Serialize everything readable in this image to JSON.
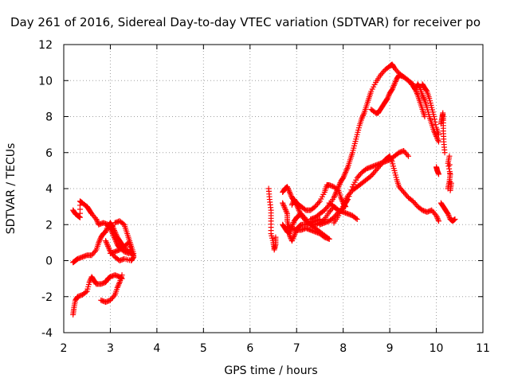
{
  "chart_data": {
    "type": "scatter",
    "title": "Day 261 of 2016, Sidereal Day-to-day VTEC variation (SDTVAR) for receiver po",
    "xlabel": "GPS time / hours",
    "ylabel": "SDTVAR / TECUs",
    "xlim": [
      2,
      11
    ],
    "ylim": [
      -4,
      12
    ],
    "xticks": [
      2,
      3,
      4,
      5,
      6,
      7,
      8,
      9,
      10,
      11
    ],
    "yticks": [
      -4,
      -2,
      0,
      2,
      4,
      6,
      8,
      10,
      12
    ],
    "grid": true,
    "marker": "plus",
    "color": "#ff0000",
    "tracks": [
      [
        [
          2.2,
          2.8
        ],
        [
          2.25,
          2.6
        ],
        [
          2.3,
          2.5
        ],
        [
          2.35,
          2.4
        ],
        [
          2.35,
          3.3
        ],
        [
          2.4,
          3.2
        ],
        [
          2.5,
          3.0
        ],
        [
          2.55,
          2.8
        ],
        [
          2.6,
          2.6
        ],
        [
          2.7,
          2.3
        ],
        [
          2.75,
          2.0
        ],
        [
          2.85,
          2.1
        ],
        [
          2.95,
          2.0
        ],
        [
          3.0,
          1.8
        ],
        [
          3.05,
          1.5
        ],
        [
          3.1,
          1.2
        ],
        [
          3.15,
          0.9
        ],
        [
          3.2,
          0.7
        ],
        [
          3.3,
          0.5
        ],
        [
          3.4,
          0.4
        ]
      ],
      [
        [
          2.2,
          -0.1
        ],
        [
          2.25,
          0.0
        ],
        [
          2.3,
          0.1
        ],
        [
          2.4,
          0.2
        ],
        [
          2.5,
          0.3
        ],
        [
          2.6,
          0.3
        ],
        [
          2.7,
          0.6
        ],
        [
          2.75,
          1.0
        ],
        [
          2.8,
          1.3
        ],
        [
          2.85,
          1.5
        ],
        [
          2.9,
          1.6
        ],
        [
          2.95,
          1.9
        ],
        [
          3.0,
          2.1
        ],
        [
          3.05,
          1.9
        ],
        [
          3.1,
          1.6
        ],
        [
          3.15,
          1.3
        ],
        [
          3.2,
          1.1
        ],
        [
          3.25,
          0.9
        ],
        [
          3.3,
          0.7
        ],
        [
          3.4,
          0.5
        ],
        [
          3.5,
          0.3
        ]
      ],
      [
        [
          3.0,
          0.4
        ],
        [
          3.1,
          0.5
        ],
        [
          3.2,
          0.6
        ],
        [
          3.3,
          0.8
        ],
        [
          3.4,
          1.0
        ],
        [
          3.45,
          0.5
        ],
        [
          3.5,
          0.2
        ],
        [
          3.45,
          0.0
        ],
        [
          3.3,
          0.1
        ],
        [
          3.2,
          0.0
        ],
        [
          3.1,
          0.2
        ],
        [
          3.0,
          0.5
        ],
        [
          2.95,
          0.8
        ],
        [
          2.9,
          1.1
        ]
      ],
      [
        [
          3.1,
          2.1
        ],
        [
          3.2,
          2.2
        ],
        [
          3.3,
          2.0
        ],
        [
          3.35,
          1.6
        ],
        [
          3.4,
          1.2
        ],
        [
          3.45,
          0.8
        ],
        [
          3.5,
          0.4
        ]
      ],
      [
        [
          2.2,
          -3.0
        ],
        [
          2.22,
          -2.6
        ],
        [
          2.25,
          -2.2
        ],
        [
          2.3,
          -2.0
        ],
        [
          2.4,
          -1.9
        ],
        [
          2.5,
          -1.7
        ],
        [
          2.55,
          -1.2
        ],
        [
          2.6,
          -0.9
        ],
        [
          2.65,
          -1.1
        ],
        [
          2.7,
          -1.3
        ],
        [
          2.8,
          -1.3
        ],
        [
          2.9,
          -1.2
        ],
        [
          2.95,
          -1.0
        ],
        [
          3.0,
          -0.9
        ],
        [
          3.1,
          -0.8
        ],
        [
          3.2,
          -0.9
        ],
        [
          3.25,
          -1.0
        ]
      ],
      [
        [
          2.8,
          -2.2
        ],
        [
          2.9,
          -2.3
        ],
        [
          3.0,
          -2.2
        ],
        [
          3.1,
          -1.9
        ],
        [
          3.15,
          -1.5
        ],
        [
          3.2,
          -1.2
        ],
        [
          3.25,
          -0.8
        ]
      ],
      [
        [
          6.4,
          4.0
        ],
        [
          6.42,
          3.4
        ],
        [
          6.45,
          2.8
        ],
        [
          6.45,
          2.2
        ],
        [
          6.45,
          1.5
        ],
        [
          6.5,
          1.0
        ],
        [
          6.52,
          0.6
        ],
        [
          6.55,
          0.9
        ],
        [
          6.55,
          1.3
        ]
      ],
      [
        [
          6.7,
          3.8
        ],
        [
          6.75,
          4.0
        ],
        [
          6.8,
          4.1
        ],
        [
          6.85,
          3.8
        ],
        [
          6.9,
          3.5
        ],
        [
          6.95,
          3.3
        ],
        [
          7.0,
          3.1
        ],
        [
          7.05,
          2.8
        ],
        [
          7.1,
          2.5
        ],
        [
          7.2,
          2.2
        ],
        [
          7.3,
          2.0
        ],
        [
          7.4,
          2.0
        ],
        [
          7.5,
          2.1
        ],
        [
          7.6,
          2.3
        ],
        [
          7.7,
          2.7
        ],
        [
          7.8,
          3.0
        ],
        [
          7.85,
          2.9
        ]
      ],
      [
        [
          6.7,
          2.0
        ],
        [
          6.75,
          1.8
        ],
        [
          6.8,
          1.6
        ],
        [
          6.85,
          1.5
        ],
        [
          6.9,
          1.9
        ],
        [
          6.95,
          2.2
        ],
        [
          7.0,
          2.4
        ],
        [
          7.05,
          2.5
        ],
        [
          7.1,
          2.6
        ],
        [
          7.2,
          2.3
        ],
        [
          7.3,
          2.0
        ],
        [
          7.4,
          1.8
        ],
        [
          7.5,
          1.6
        ],
        [
          7.6,
          1.4
        ],
        [
          7.7,
          1.2
        ]
      ],
      [
        [
          6.7,
          3.2
        ],
        [
          6.75,
          2.9
        ],
        [
          6.8,
          2.6
        ],
        [
          6.8,
          2.2
        ],
        [
          6.85,
          1.8
        ],
        [
          6.85,
          1.4
        ],
        [
          6.9,
          1.1
        ],
        [
          6.95,
          1.4
        ],
        [
          7.0,
          1.7
        ],
        [
          7.05,
          1.9
        ],
        [
          7.1,
          2.0
        ],
        [
          7.2,
          2.0
        ],
        [
          7.3,
          2.1
        ],
        [
          7.4,
          2.2
        ],
        [
          7.5,
          2.3
        ]
      ],
      [
        [
          6.9,
          3.1
        ],
        [
          6.95,
          3.4
        ],
        [
          7.0,
          3.2
        ],
        [
          7.1,
          3.0
        ],
        [
          7.2,
          2.8
        ],
        [
          7.3,
          2.8
        ],
        [
          7.4,
          3.0
        ],
        [
          7.5,
          3.3
        ],
        [
          7.6,
          3.8
        ],
        [
          7.65,
          4.2
        ],
        [
          7.7,
          4.2
        ],
        [
          7.8,
          4.1
        ],
        [
          7.9,
          3.9
        ],
        [
          7.95,
          3.5
        ],
        [
          8.0,
          3.2
        ],
        [
          8.05,
          3.0
        ]
      ],
      [
        [
          7.3,
          2.3
        ],
        [
          7.4,
          2.4
        ],
        [
          7.5,
          2.6
        ],
        [
          7.6,
          2.8
        ],
        [
          7.7,
          3.1
        ],
        [
          7.8,
          3.5
        ],
        [
          7.85,
          3.8
        ],
        [
          7.9,
          4.1
        ],
        [
          7.95,
          4.4
        ],
        [
          8.0,
          4.6
        ],
        [
          8.05,
          4.9
        ],
        [
          8.1,
          5.2
        ],
        [
          8.15,
          5.6
        ],
        [
          8.2,
          6.0
        ],
        [
          8.25,
          6.5
        ],
        [
          8.3,
          7.0
        ],
        [
          8.35,
          7.5
        ],
        [
          8.4,
          7.9
        ],
        [
          8.45,
          8.2
        ],
        [
          8.5,
          8.6
        ],
        [
          8.55,
          9.0
        ],
        [
          8.6,
          9.4
        ],
        [
          8.7,
          9.9
        ],
        [
          8.8,
          10.3
        ],
        [
          8.9,
          10.6
        ],
        [
          9.0,
          10.8
        ],
        [
          9.05,
          10.9
        ],
        [
          9.1,
          10.7
        ],
        [
          9.2,
          10.4
        ],
        [
          9.3,
          10.2
        ],
        [
          9.4,
          10.0
        ],
        [
          9.5,
          9.8
        ],
        [
          9.55,
          9.5
        ],
        [
          9.6,
          9.2
        ],
        [
          9.65,
          8.8
        ],
        [
          9.7,
          8.4
        ],
        [
          9.75,
          8.0
        ]
      ],
      [
        [
          8.6,
          8.4
        ],
        [
          8.7,
          8.2
        ],
        [
          8.75,
          8.2
        ],
        [
          8.8,
          8.4
        ],
        [
          8.85,
          8.6
        ],
        [
          8.9,
          8.8
        ],
        [
          8.95,
          9.0
        ],
        [
          9.0,
          9.3
        ],
        [
          9.05,
          9.5
        ],
        [
          9.1,
          9.8
        ],
        [
          9.15,
          10.1
        ],
        [
          9.2,
          10.3
        ],
        [
          9.3,
          10.2
        ],
        [
          9.4,
          10.0
        ],
        [
          9.5,
          9.7
        ],
        [
          9.55,
          9.5
        ],
        [
          9.6,
          9.8
        ],
        [
          9.65,
          9.6
        ],
        [
          9.7,
          9.2
        ],
        [
          9.75,
          8.9
        ],
        [
          9.8,
          8.5
        ],
        [
          9.85,
          8.0
        ],
        [
          9.9,
          7.6
        ],
        [
          9.95,
          7.2
        ],
        [
          10.0,
          6.9
        ],
        [
          10.05,
          6.6
        ]
      ],
      [
        [
          7.8,
          2.1
        ],
        [
          7.9,
          2.5
        ],
        [
          8.0,
          3.0
        ],
        [
          8.05,
          3.3
        ],
        [
          8.1,
          3.6
        ],
        [
          8.2,
          3.9
        ],
        [
          8.3,
          4.1
        ],
        [
          8.4,
          4.3
        ],
        [
          8.5,
          4.5
        ],
        [
          8.6,
          4.7
        ],
        [
          8.7,
          5.0
        ],
        [
          8.8,
          5.3
        ],
        [
          8.9,
          5.6
        ],
        [
          8.95,
          5.7
        ],
        [
          9.0,
          5.8
        ],
        [
          9.05,
          5.5
        ],
        [
          9.1,
          5.0
        ],
        [
          9.15,
          4.5
        ],
        [
          9.2,
          4.1
        ],
        [
          9.3,
          3.8
        ],
        [
          9.4,
          3.5
        ],
        [
          9.5,
          3.3
        ],
        [
          9.6,
          3.0
        ],
        [
          9.7,
          2.8
        ],
        [
          9.8,
          2.7
        ],
        [
          9.9,
          2.8
        ],
        [
          10.0,
          2.5
        ],
        [
          10.05,
          2.2
        ]
      ],
      [
        [
          7.5,
          2.0
        ],
        [
          7.6,
          2.1
        ],
        [
          7.7,
          2.2
        ],
        [
          7.8,
          2.4
        ],
        [
          7.9,
          2.7
        ],
        [
          8.0,
          2.9
        ],
        [
          8.05,
          3.2
        ],
        [
          8.1,
          3.4
        ],
        [
          8.2,
          4.1
        ],
        [
          8.3,
          4.6
        ],
        [
          8.4,
          4.9
        ],
        [
          8.5,
          5.1
        ],
        [
          8.6,
          5.2
        ],
        [
          8.7,
          5.3
        ],
        [
          8.8,
          5.4
        ],
        [
          8.9,
          5.5
        ],
        [
          9.0,
          5.6
        ],
        [
          9.1,
          5.8
        ],
        [
          9.2,
          6.0
        ],
        [
          9.3,
          6.1
        ],
        [
          9.4,
          5.8
        ]
      ],
      [
        [
          7.7,
          3.2
        ],
        [
          7.8,
          3.0
        ],
        [
          7.9,
          2.8
        ],
        [
          8.0,
          2.7
        ],
        [
          8.1,
          2.6
        ],
        [
          8.2,
          2.5
        ],
        [
          8.3,
          2.3
        ]
      ],
      [
        [
          6.8,
          1.9
        ],
        [
          6.9,
          1.8
        ],
        [
          7.0,
          1.7
        ],
        [
          7.1,
          1.7
        ],
        [
          7.2,
          1.8
        ],
        [
          7.3,
          1.7
        ],
        [
          7.4,
          1.6
        ],
        [
          7.5,
          1.5
        ],
        [
          7.6,
          1.3
        ],
        [
          7.7,
          1.2
        ]
      ],
      [
        [
          9.7,
          9.8
        ],
        [
          9.75,
          9.6
        ],
        [
          9.8,
          9.4
        ],
        [
          9.85,
          9.0
        ],
        [
          9.9,
          8.5
        ],
        [
          9.95,
          8.0
        ],
        [
          10.0,
          7.4
        ],
        [
          10.05,
          7.0
        ]
      ],
      [
        [
          10.1,
          7.6
        ],
        [
          10.12,
          7.9
        ],
        [
          10.14,
          8.2
        ],
        [
          10.15,
          7.8
        ],
        [
          10.15,
          7.2
        ],
        [
          10.16,
          6.6
        ],
        [
          10.18,
          6.0
        ]
      ],
      [
        [
          10.0,
          5.2
        ],
        [
          10.02,
          5.0
        ],
        [
          10.05,
          4.8
        ]
      ],
      [
        [
          10.1,
          3.2
        ],
        [
          10.15,
          3.0
        ],
        [
          10.2,
          2.8
        ],
        [
          10.25,
          2.6
        ],
        [
          10.3,
          2.3
        ],
        [
          10.35,
          2.2
        ],
        [
          10.4,
          2.3
        ]
      ],
      [
        [
          10.25,
          4.0
        ],
        [
          10.28,
          4.4
        ],
        [
          10.3,
          4.8
        ],
        [
          10.25,
          5.4
        ],
        [
          10.28,
          5.8
        ],
        [
          10.3,
          3.9
        ],
        [
          10.32,
          4.3
        ]
      ]
    ]
  }
}
